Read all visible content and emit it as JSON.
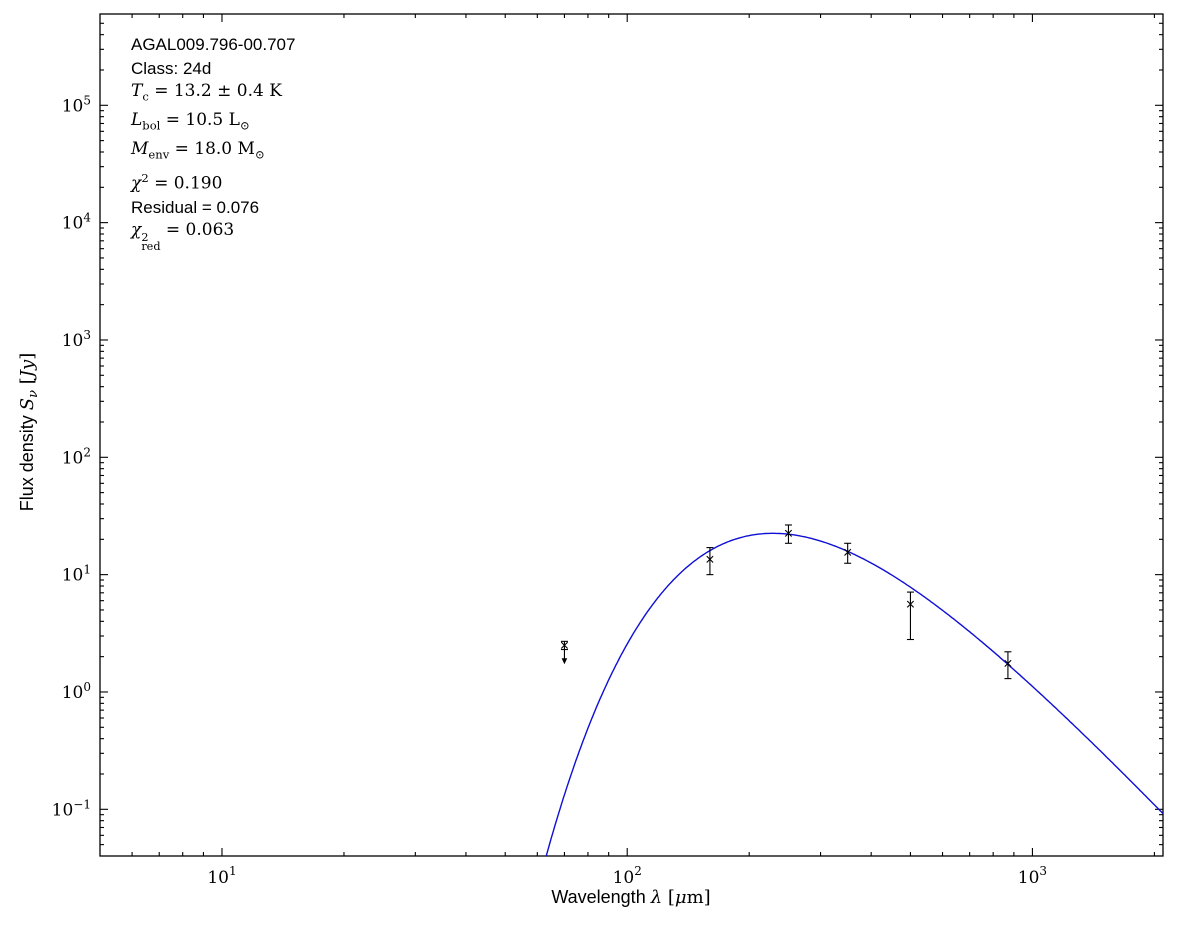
{
  "figure": {
    "background": "#ffffff"
  },
  "chart_data": {
    "type": "scatter",
    "title": "",
    "xlabel": {
      "plain": "Wavelength ",
      "symbol": "λ",
      "unit_pre": " [",
      "unit_mu": "μ",
      "unit_post": "m]"
    },
    "ylabel": {
      "plain": "Flux density ",
      "symbol": "S",
      "symbol_sub": "ν",
      "unit_pre": " [",
      "unit_word": "Jy",
      "unit_post": "]"
    },
    "xlim": [
      5,
      2100
    ],
    "ylim": [
      0.04,
      600000
    ],
    "x_scale": "log",
    "y_scale": "log",
    "grid": false,
    "legend": "none",
    "axis_color": "#000000",
    "marker_color": "#000000",
    "x_major_ticks": [
      {
        "value": 10,
        "base": "10",
        "exp": "1"
      },
      {
        "value": 100,
        "base": "10",
        "exp": "2"
      },
      {
        "value": 1000,
        "base": "10",
        "exp": "3"
      }
    ],
    "y_major_ticks": [
      {
        "value": 0.1,
        "base": "10",
        "exp": "−1"
      },
      {
        "value": 1,
        "base": "10",
        "exp": "0"
      },
      {
        "value": 10,
        "base": "10",
        "exp": "1"
      },
      {
        "value": 100,
        "base": "10",
        "exp": "2"
      },
      {
        "value": 1000,
        "base": "10",
        "exp": "3"
      },
      {
        "value": 10000,
        "base": "10",
        "exp": "4"
      },
      {
        "value": 100000,
        "base": "10",
        "exp": "5"
      }
    ],
    "log_minor_multiples": [
      2,
      3,
      4,
      5,
      6,
      7,
      8,
      9
    ],
    "points": [
      {
        "lambda_um": 70,
        "flux_jy": 2.5,
        "err_plus": 0.2,
        "err_minus": 0.2,
        "upper_limit": true
      },
      {
        "lambda_um": 160,
        "flux_jy": 13.5,
        "err_plus": 3.5,
        "err_minus": 3.5,
        "upper_limit": false
      },
      {
        "lambda_um": 250,
        "flux_jy": 22.5,
        "err_plus": 4.0,
        "err_minus": 4.0,
        "upper_limit": false
      },
      {
        "lambda_um": 350,
        "flux_jy": 15.5,
        "err_plus": 3.0,
        "err_minus": 3.0,
        "upper_limit": false
      },
      {
        "lambda_um": 500,
        "flux_jy": 5.6,
        "err_plus": 1.5,
        "err_minus": 2.8,
        "upper_limit": false
      },
      {
        "lambda_um": 870,
        "flux_jy": 1.75,
        "err_plus": 0.45,
        "err_minus": 0.45,
        "upper_limit": false
      }
    ],
    "fit_curve": {
      "model": "greybody",
      "T_K": 13.2,
      "beta": 1.8,
      "peak_flux_jy": 22.5,
      "lambda_min_um": 40,
      "lambda_max_um": 2100,
      "color": "#0f0fd6"
    }
  },
  "annotation": {
    "source_name": "AGAL009.796-00.707",
    "class_line": "Class: 24d",
    "tc": {
      "var": "T",
      "sub": "c",
      "rest": " = 13.2 ± 0.4 K"
    },
    "lbol": {
      "var": "L",
      "sub": "bol",
      "rest": " = 10.5 L",
      "unit_sub": "⊙"
    },
    "menv": {
      "var": "M",
      "sub": "env",
      "rest": " = 18.0 M",
      "unit_sub": "⊙"
    },
    "chi2": {
      "var": "χ",
      "sup": "2",
      "rest": " = 0.190"
    },
    "residual": "Residual = 0.076",
    "chi2red": {
      "var": "χ",
      "sup": "2",
      "sub": "red",
      "rest": " = 0.063"
    }
  }
}
